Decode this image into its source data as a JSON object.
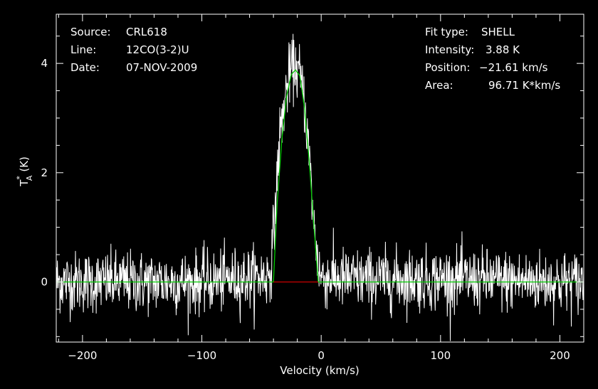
{
  "colors": {
    "background": "#000000",
    "axes": "#ffffff",
    "data": "#ffffff",
    "fit": "#00cc00",
    "baseline": "#cc0000"
  },
  "info_left": [
    {
      "key": "Source:",
      "value": "CRL618"
    },
    {
      "key": "Line:",
      "value": "12CO(3-2)U"
    },
    {
      "key": "Date:",
      "value": "07-NOV-2009"
    }
  ],
  "info_right": [
    {
      "key": "Fit type:",
      "value": "SHELL"
    },
    {
      "key": "Intensity:",
      "value": "3.88 K"
    },
    {
      "key": "Position:",
      "value": "−21.61 km/s"
    },
    {
      "key": "Area:",
      "value": "96.71 K*km/s"
    }
  ],
  "chart_data": {
    "type": "line",
    "xlabel": "Velocity (km/s)",
    "ylabel": "T",
    "ylabel_sup": "*",
    "ylabel_sub": "A",
    "ylabel_unit": "(K)",
    "xlim": [
      -222,
      220
    ],
    "ylim": [
      -1.1,
      4.9
    ],
    "x_ticks": [
      -200,
      -100,
      0,
      100,
      200
    ],
    "x_tick_labels": [
      "−200",
      "−100",
      "0",
      "100",
      "200"
    ],
    "y_ticks": [
      0,
      2,
      4
    ],
    "y_tick_labels": [
      "0",
      "2",
      "4"
    ],
    "grid": false,
    "series": [
      {
        "kind": "noisy-spectrum",
        "x_start": -222,
        "x_end": 220,
        "points": 1400,
        "noise_rms_K": 0.28,
        "x": [
          -222,
          -200,
          -100,
          -45,
          -42,
          -38,
          -35,
          -30,
          -26,
          -22,
          -18,
          -14,
          -10,
          -6,
          -2,
          0,
          20,
          100,
          200,
          220
        ],
        "y": [
          0.0,
          0.0,
          0.0,
          0.1,
          0.3,
          1.5,
          2.6,
          3.4,
          3.85,
          3.95,
          3.8,
          3.3,
          2.3,
          1.0,
          0.25,
          0.1,
          0.05,
          0.05,
          0.0,
          0.0
        ]
      },
      {
        "kind": "fit",
        "x": [
          -222,
          -40,
          -37,
          -33,
          -29,
          -25,
          -21.6,
          -18,
          -14,
          -10,
          -6,
          -2.5,
          220
        ],
        "y": [
          0,
          0,
          1.4,
          2.6,
          3.4,
          3.8,
          3.88,
          3.78,
          3.2,
          2.2,
          1.0,
          0,
          0
        ]
      },
      {
        "kind": "baseline",
        "x": [
          -40,
          -2.5
        ],
        "y": [
          0,
          0
        ]
      }
    ]
  }
}
